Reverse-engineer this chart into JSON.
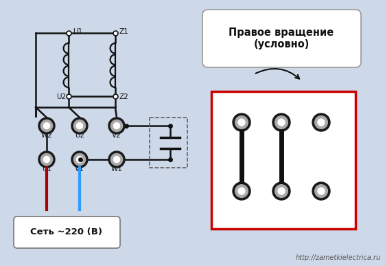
{
  "bg_color": "#cdd8e8",
  "title_text": "Правое вращение\n(условно)",
  "bottom_left_text": "Сеть ~220 (В)",
  "bottom_right_text": "http://zametkielectrica.ru",
  "red_wire_color": "#aa0000",
  "blue_wire_color": "#3399ff",
  "black_wire_color": "#111111",
  "box_red_color": "#cc0000",
  "terminal_dark": "#222222",
  "terminal_mid": "#888888",
  "terminal_inner": "#cccccc"
}
